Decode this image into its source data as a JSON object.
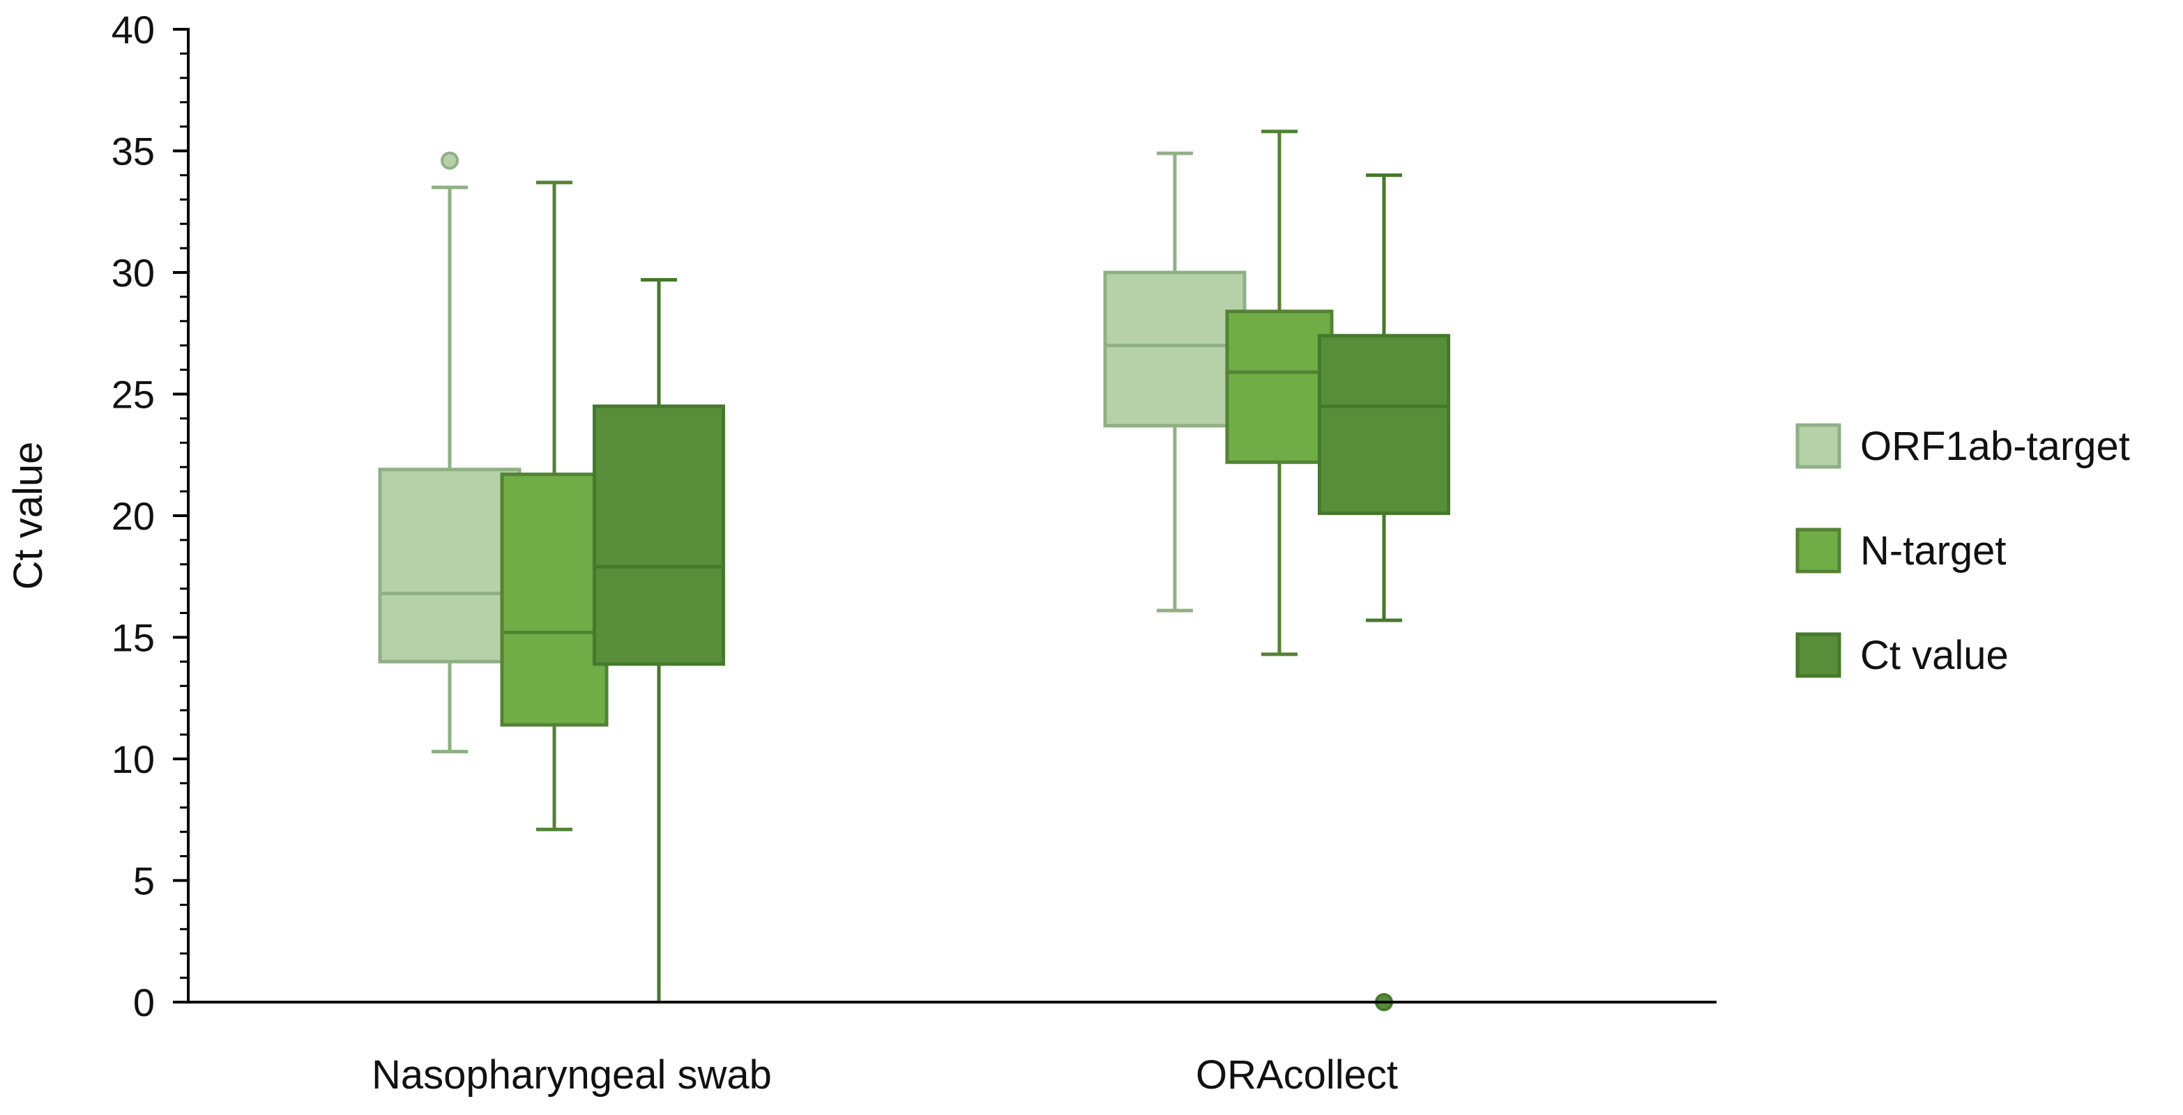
{
  "chart_data": {
    "type": "boxplot",
    "title": "",
    "xlabel": "",
    "ylabel": "Ct value",
    "ylim": [
      0,
      40
    ],
    "y_ticks": [
      "0",
      "5",
      "10",
      "15",
      "20",
      "25",
      "30",
      "35",
      "40"
    ],
    "categories": [
      "Nasopharyngeal swab",
      "ORAcollect"
    ],
    "series": [
      {
        "name": "ORF1ab-target",
        "fill": "#b6d1a7",
        "stroke": "#8fb084",
        "boxes": [
          {
            "min": 10.3,
            "q1": 14.0,
            "median": 16.8,
            "q3": 21.9,
            "max": 33.5,
            "outliers": [
              34.6
            ]
          },
          {
            "min": 16.1,
            "q1": 23.7,
            "median": 27.0,
            "q3": 30.0,
            "max": 34.9,
            "outliers": []
          }
        ]
      },
      {
        "name": "N-target",
        "fill": "#70ad47",
        "stroke": "#548235",
        "boxes": [
          {
            "min": 7.1,
            "q1": 11.4,
            "median": 15.2,
            "q3": 21.7,
            "max": 33.7,
            "outliers": []
          },
          {
            "min": 14.3,
            "q1": 22.2,
            "median": 25.9,
            "q3": 28.4,
            "max": 35.8,
            "outliers": []
          }
        ]
      },
      {
        "name": "Ct value",
        "fill": "#588d3a",
        "stroke": "#457a2c",
        "boxes": [
          {
            "min": 0.0,
            "q1": 13.9,
            "median": 17.9,
            "q3": 24.5,
            "max": 29.7,
            "outliers": []
          },
          {
            "min": 15.7,
            "q1": 20.1,
            "median": 24.5,
            "q3": 27.4,
            "max": 34.0,
            "outliers": [
              0.0
            ]
          }
        ]
      }
    ]
  }
}
